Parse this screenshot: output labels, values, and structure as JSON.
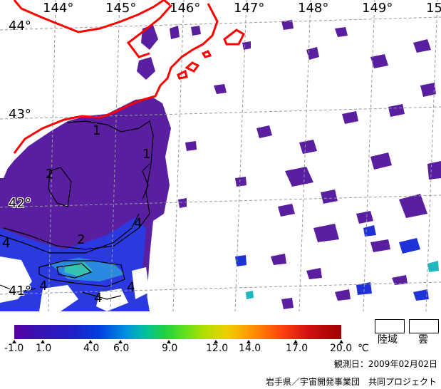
{
  "map": {
    "longitude_labels": [
      "144°",
      "145°",
      "146°",
      "147°",
      "148°",
      "149°",
      "15"
    ],
    "latitude_labels": [
      "44°",
      "43°",
      "42°",
      "41°"
    ],
    "contour_labels": [
      "1",
      "1",
      "2",
      "2",
      "4",
      "4",
      "4",
      "4",
      "4"
    ],
    "colors": {
      "land_outline": "#ff0000",
      "grid": "#999999",
      "sst_cold": "#5a1ea0",
      "cloud": "#ffffff"
    }
  },
  "legend": {
    "ticks": [
      "-1.0",
      "1.0",
      "4.0",
      "6.0",
      "9.0",
      "12.0",
      "14.0",
      "17.0",
      "20.0"
    ],
    "unit": "℃",
    "land_label": "陸域",
    "cloud_label": "雲"
  },
  "footer": {
    "observation_date": "観測日：2009年02月02日",
    "credit": "岩手県／宇宙開発事業団　共同プロジェクト"
  }
}
